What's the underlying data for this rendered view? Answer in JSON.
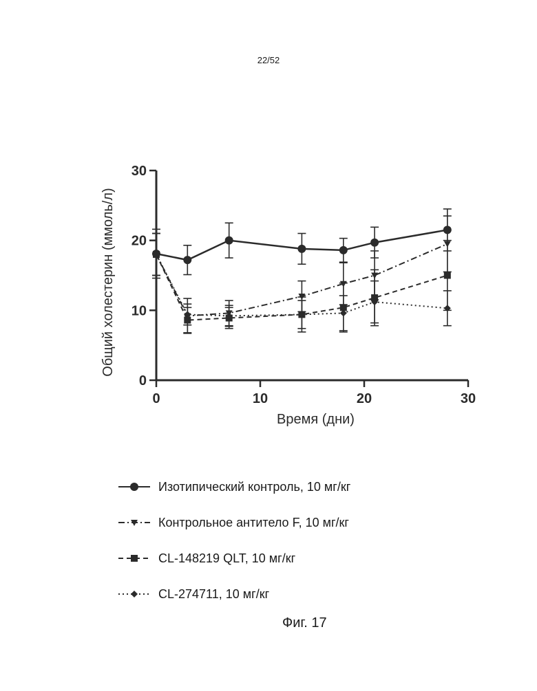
{
  "page_number": "22/52",
  "figure_caption": "Фиг. 17",
  "chart_data": {
    "type": "line",
    "title": "",
    "xlabel": "Время (дни)",
    "ylabel": "Общий холестерин (ммоль/л)",
    "xlim": [
      0,
      30
    ],
    "ylim": [
      0,
      30
    ],
    "xticks": [
      0,
      10,
      20,
      30
    ],
    "yticks": [
      0,
      10,
      20,
      30
    ],
    "legend_position": "bottom",
    "grid": false,
    "series": [
      {
        "name": "Изотипический контроль, 10 мг/кг",
        "marker": "circle",
        "line_style": "solid",
        "x": [
          0,
          3,
          7,
          14,
          18,
          21,
          28
        ],
        "y": [
          18.1,
          17.2,
          20.0,
          18.8,
          18.6,
          19.7,
          21.5
        ],
        "error": [
          3.5,
          2.1,
          2.5,
          2.2,
          1.7,
          2.2,
          3.0
        ]
      },
      {
        "name": "Контрольное антитело F, 10 мг/кг",
        "marker": "triangle-down",
        "line_style": "dash-dot",
        "x": [
          0,
          3,
          7,
          14,
          18,
          21,
          28
        ],
        "y": [
          18.0,
          9.2,
          9.6,
          12.0,
          13.8,
          15.0,
          19.5
        ],
        "error": [
          3.0,
          2.5,
          1.8,
          2.2,
          3.0,
          3.5,
          4.0
        ]
      },
      {
        "name": "CL-148219 QLT, 10 мг/кг",
        "marker": "square",
        "line_style": "dashed",
        "x": [
          0,
          3,
          7,
          14,
          18,
          21,
          28
        ],
        "y": [
          18.0,
          8.6,
          8.9,
          9.4,
          10.4,
          11.8,
          15.0
        ],
        "error": [
          3.0,
          1.8,
          1.5,
          2.5,
          3.5,
          4.0,
          5.0
        ]
      },
      {
        "name": "CL-274711, 10 мг/кг",
        "marker": "diamond",
        "line_style": "dotted",
        "x": [
          0,
          3,
          7,
          14,
          18,
          21,
          28
        ],
        "y": [
          18.0,
          9.4,
          9.2,
          9.4,
          9.6,
          11.2,
          10.3
        ],
        "error": [
          3.0,
          1.5,
          1.5,
          2.0,
          2.5,
          3.0,
          2.5
        ]
      }
    ]
  }
}
